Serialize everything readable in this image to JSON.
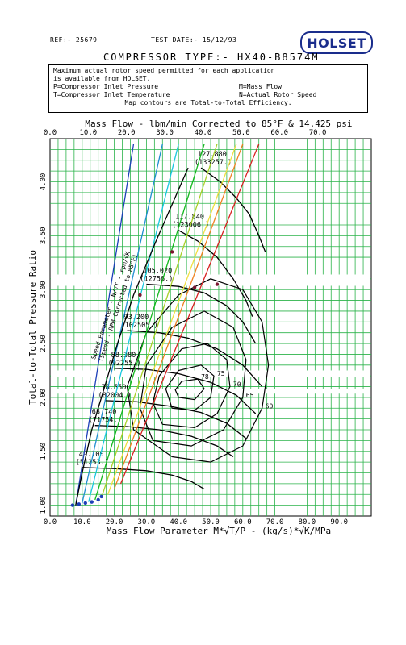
{
  "header": {
    "ref": "REF:- 25679",
    "test_date": "TEST DATE:- 15/12/93",
    "logo": "HOLSET",
    "compressor_type": "COMPRESSOR TYPE:- HX40-B8574M"
  },
  "notes": {
    "line1": "Maximum actual rotor speed permitted for each application",
    "line2": "is available from HOLSET.",
    "p_def": "P=Compressor Inlet Pressure",
    "m_def": "M=Mass Flow",
    "t_def": "T=Compressor Inlet Temperature",
    "n_def": "N=Actual Rotor Speed",
    "efficiency": "Map contours are Total-to-Total Efficiency."
  },
  "chart_data": {
    "type": "line",
    "title": "",
    "top_axis": {
      "label": "Mass Flow - lbm/min Corrected to 85°F & 14.425 psi",
      "ticks": [
        "0.0",
        "10.0",
        "20.0",
        "30.0",
        "40.0",
        "50.0",
        "60.0",
        "70.0"
      ],
      "values": [
        0,
        10,
        20,
        30,
        40,
        50,
        60,
        70
      ]
    },
    "xlabel": "Mass Flow Parameter  M*√T/P  -  (kg/s)*√K/MPa",
    "ylabel": "Total-to-Total Pressure Ratio",
    "xlim": [
      0,
      100
    ],
    "ylim": [
      0.9,
      4.4
    ],
    "x_ticks": [
      "0.0",
      "10.0",
      "20.0",
      "30.0",
      "40.0",
      "50.0",
      "60.0",
      "70.0",
      "80.0",
      "90.0"
    ],
    "x_tick_values": [
      0,
      10,
      20,
      30,
      40,
      50,
      60,
      70,
      80,
      90
    ],
    "y_ticks": [
      "1.00",
      "1.50",
      "2.00",
      "2.50",
      "3.00",
      "3.50",
      "4.00"
    ],
    "y_tick_values": [
      1.0,
      1.5,
      2.0,
      2.5,
      3.0,
      3.5,
      4.0
    ],
    "grid": true,
    "speed_parameter_label": "Speed Parameter - N/√T - rpm/√K",
    "speed_parameter_sublabel": "(Speed - RPM Corrected to 85°F)",
    "speed_lines": [
      {
        "value": "127.880",
        "rpm": "(133257.)",
        "points": [
          [
            47,
            4.13
          ],
          [
            53,
            4.0
          ],
          [
            58,
            3.85
          ],
          [
            62,
            3.7
          ],
          [
            65,
            3.5
          ],
          [
            67,
            3.35
          ]
        ]
      },
      {
        "value": "117.840",
        "rpm": "(123006.)",
        "points": [
          [
            40,
            3.55
          ],
          [
            46,
            3.45
          ],
          [
            52,
            3.3
          ],
          [
            57,
            3.1
          ],
          [
            61,
            2.9
          ],
          [
            63,
            2.75
          ]
        ]
      },
      {
        "value": "105.020",
        "rpm": "(12756.)",
        "points": [
          [
            30,
            3.05
          ],
          [
            40,
            3.03
          ],
          [
            48,
            2.97
          ],
          [
            55,
            2.85
          ],
          [
            60,
            2.7
          ],
          [
            64,
            2.5
          ]
        ]
      },
      {
        "value": "93.200",
        "rpm": "(102505.)",
        "points": [
          [
            24,
            2.62
          ],
          [
            34,
            2.6
          ],
          [
            43,
            2.55
          ],
          [
            52,
            2.45
          ],
          [
            60,
            2.3
          ],
          [
            66,
            2.1
          ]
        ]
      },
      {
        "value": "88.380",
        "rpm": "(92255.)",
        "points": [
          [
            20,
            2.27
          ],
          [
            30,
            2.26
          ],
          [
            40,
            2.22
          ],
          [
            50,
            2.14
          ],
          [
            58,
            2.02
          ],
          [
            64,
            1.85
          ]
        ]
      },
      {
        "value": "78.550",
        "rpm": "(82004.)",
        "points": [
          [
            17,
            1.97
          ],
          [
            27,
            1.96
          ],
          [
            37,
            1.92
          ],
          [
            47,
            1.86
          ],
          [
            55,
            1.76
          ],
          [
            61,
            1.62
          ]
        ]
      },
      {
        "value": "68.740",
        "rpm": "(71754.)",
        "points": [
          [
            14,
            1.74
          ],
          [
            24,
            1.73
          ],
          [
            34,
            1.7
          ],
          [
            44,
            1.64
          ],
          [
            52,
            1.55
          ],
          [
            57,
            1.45
          ]
        ]
      },
      {
        "value": "49.100",
        "rpm": "(51253.)",
        "points": [
          [
            10,
            1.35
          ],
          [
            20,
            1.34
          ],
          [
            30,
            1.32
          ],
          [
            38,
            1.28
          ],
          [
            44,
            1.22
          ],
          [
            48,
            1.15
          ]
        ]
      }
    ],
    "efficiency_islands": [
      {
        "label": "60",
        "points": [
          [
            38,
            1.45
          ],
          [
            50,
            1.4
          ],
          [
            60,
            1.55
          ],
          [
            66,
            1.9
          ],
          [
            68,
            2.3
          ],
          [
            66,
            2.7
          ],
          [
            60,
            3.0
          ],
          [
            50,
            3.1
          ],
          [
            40,
            2.95
          ],
          [
            30,
            2.6
          ],
          [
            24,
            2.1
          ],
          [
            26,
            1.7
          ],
          [
            38,
            1.45
          ]
        ]
      },
      {
        "label": "65",
        "points": [
          [
            32,
            1.6
          ],
          [
            44,
            1.55
          ],
          [
            54,
            1.7
          ],
          [
            60,
            2.0
          ],
          [
            61,
            2.35
          ],
          [
            57,
            2.65
          ],
          [
            48,
            2.8
          ],
          [
            38,
            2.65
          ],
          [
            30,
            2.3
          ],
          [
            28,
            1.9
          ],
          [
            32,
            1.6
          ]
        ]
      },
      {
        "label": "70",
        "points": [
          [
            35,
            1.75
          ],
          [
            45,
            1.72
          ],
          [
            52,
            1.85
          ],
          [
            56,
            2.1
          ],
          [
            55,
            2.35
          ],
          [
            49,
            2.5
          ],
          [
            41,
            2.45
          ],
          [
            34,
            2.2
          ],
          [
            32,
            1.95
          ],
          [
            35,
            1.75
          ]
        ]
      },
      {
        "label": "75",
        "points": [
          [
            38,
            1.9
          ],
          [
            45,
            1.88
          ],
          [
            50,
            2.0
          ],
          [
            51,
            2.2
          ],
          [
            47,
            2.3
          ],
          [
            40,
            2.25
          ],
          [
            36,
            2.08
          ],
          [
            38,
            1.9
          ]
        ]
      },
      {
        "label": "78",
        "points": [
          [
            40,
            2.0
          ],
          [
            45,
            1.98
          ],
          [
            48,
            2.08
          ],
          [
            46,
            2.17
          ],
          [
            41,
            2.15
          ],
          [
            39,
            2.07
          ],
          [
            40,
            2.0
          ]
        ]
      }
    ],
    "surge_line": [
      [
        8,
        1.0
      ],
      [
        10,
        1.3
      ],
      [
        13,
        1.7
      ],
      [
        17,
        2.1
      ],
      [
        21,
        2.5
      ],
      [
        26,
        2.95
      ],
      [
        33,
        3.45
      ],
      [
        43,
        4.13
      ]
    ],
    "flow_parameter_lines": [
      {
        "color": "#1c3fb8",
        "points": [
          [
            8,
            1.0
          ],
          [
            26,
            4.55
          ]
        ]
      },
      {
        "color": "#1f8fd0",
        "points": [
          [
            10,
            1.02
          ],
          [
            35,
            4.55
          ]
        ]
      },
      {
        "color": "#19c8e0",
        "points": [
          [
            12,
            1.03
          ],
          [
            40,
            4.55
          ]
        ]
      },
      {
        "color": "#11b81c",
        "points": [
          [
            14,
            1.05
          ],
          [
            48,
            4.55
          ]
        ]
      },
      {
        "color": "#a8d028",
        "points": [
          [
            16,
            1.07
          ],
          [
            52,
            4.55
          ]
        ]
      },
      {
        "color": "#f0e040",
        "points": [
          [
            18,
            1.1
          ],
          [
            58,
            4.55
          ]
        ]
      },
      {
        "color": "#f08020",
        "points": [
          [
            20,
            1.15
          ],
          [
            60,
            4.55
          ]
        ]
      },
      {
        "color": "#d82020",
        "points": [
          [
            22,
            1.2
          ],
          [
            65,
            4.55
          ]
        ]
      }
    ],
    "annotation_points": [
      [
        28,
        2.95
      ],
      [
        45,
        3.02
      ],
      [
        52,
        3.05
      ],
      [
        38,
        3.35
      ]
    ],
    "bottom_markers": [
      [
        7,
        1.0
      ],
      [
        9,
        1.01
      ],
      [
        11,
        1.02
      ],
      [
        13,
        1.03
      ],
      [
        15,
        1.05
      ],
      [
        16,
        1.08
      ]
    ]
  }
}
